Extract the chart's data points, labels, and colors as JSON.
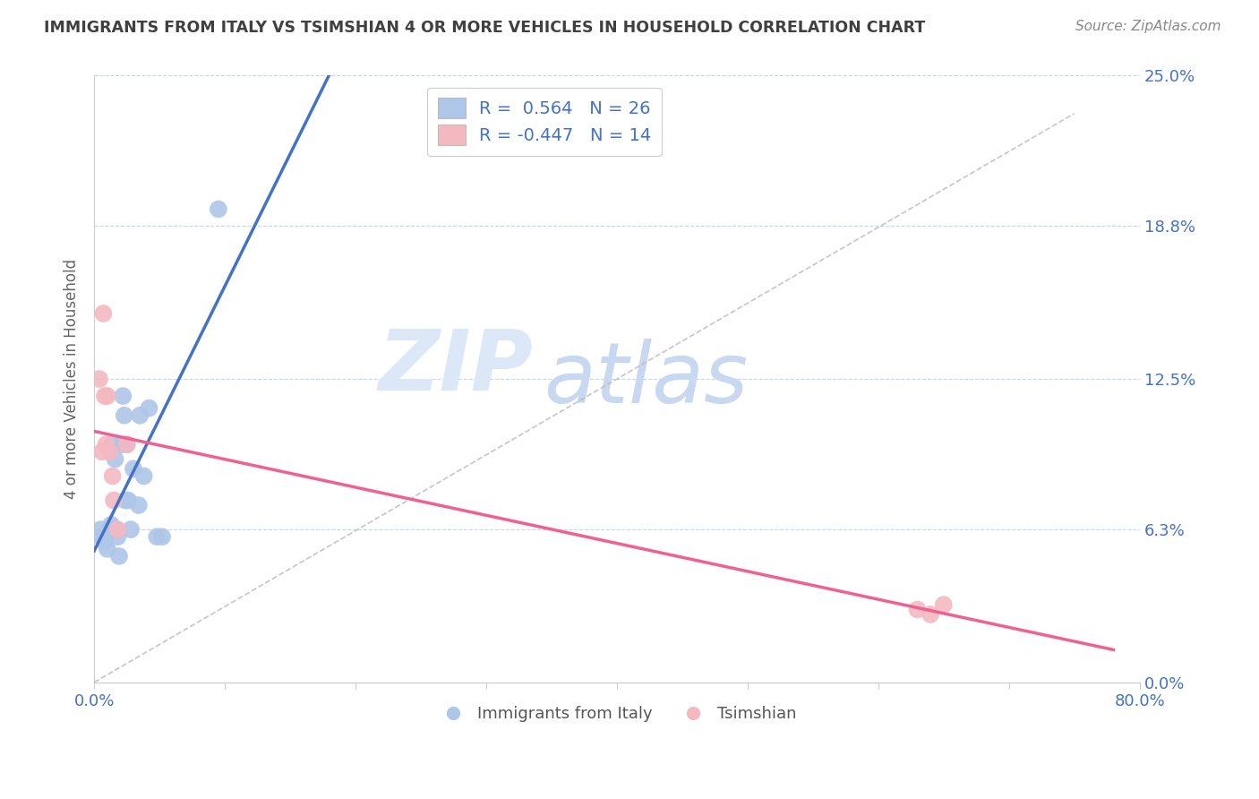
{
  "title": "IMMIGRANTS FROM ITALY VS TSIMSHIAN 4 OR MORE VEHICLES IN HOUSEHOLD CORRELATION CHART",
  "source": "Source: ZipAtlas.com",
  "ylabel": "4 or more Vehicles in Household",
  "xmin": 0.0,
  "xmax": 0.8,
  "ymin": 0.0,
  "ymax": 0.25,
  "xtick_positions": [
    0.0,
    0.1,
    0.2,
    0.3,
    0.4,
    0.5,
    0.6,
    0.7,
    0.8
  ],
  "xtick_labels": [
    "0.0%",
    "",
    "",
    "",
    "",
    "",
    "",
    "",
    "80.0%"
  ],
  "ytick_positions": [
    0.0,
    0.063,
    0.125,
    0.188,
    0.25
  ],
  "ytick_labels_right": [
    "0.0%",
    "6.3%",
    "12.5%",
    "18.8%",
    "25.0%"
  ],
  "legend_italy_label": "Immigrants from Italy",
  "legend_tsimshian_label": "Tsimshian",
  "italy_R": "0.564",
  "italy_N": "26",
  "tsimshian_R": "-0.447",
  "tsimshian_N": "14",
  "italy_color": "#aec6e8",
  "tsimshian_color": "#f4b8c1",
  "italy_line_color": "#4472c4",
  "tsimshian_line_color": "#f06090",
  "diagonal_color": "#b8b8b8",
  "background_color": "#ffffff",
  "grid_color": "#c8d4e8",
  "title_color": "#404040",
  "axis_label_color": "#4472c4",
  "watermark_zip_color": "#dce8f8",
  "watermark_atlas_color": "#c8d8f0",
  "italy_x": [
    0.005,
    0.005,
    0.008,
    0.01,
    0.012,
    0.013,
    0.014,
    0.016,
    0.016,
    0.018,
    0.019,
    0.021,
    0.022,
    0.023,
    0.024,
    0.025,
    0.026,
    0.028,
    0.03,
    0.034,
    0.035,
    0.038,
    0.042,
    0.048,
    0.052,
    0.095
  ],
  "italy_y": [
    0.06,
    0.063,
    0.058,
    0.055,
    0.063,
    0.065,
    0.098,
    0.092,
    0.063,
    0.06,
    0.052,
    0.098,
    0.118,
    0.11,
    0.075,
    0.098,
    0.075,
    0.063,
    0.088,
    0.073,
    0.11,
    0.085,
    0.113,
    0.06,
    0.06,
    0.195
  ],
  "tsimshian_x": [
    0.004,
    0.006,
    0.007,
    0.008,
    0.009,
    0.01,
    0.012,
    0.014,
    0.015,
    0.018,
    0.025,
    0.63,
    0.64,
    0.65
  ],
  "tsimshian_y": [
    0.125,
    0.095,
    0.152,
    0.118,
    0.098,
    0.118,
    0.095,
    0.085,
    0.075,
    0.063,
    0.098,
    0.03,
    0.028,
    0.032
  ],
  "italy_line_xstart": 0.0,
  "italy_line_xend": 0.5,
  "tsimshian_line_xstart": 0.0,
  "tsimshian_line_xend": 0.78
}
